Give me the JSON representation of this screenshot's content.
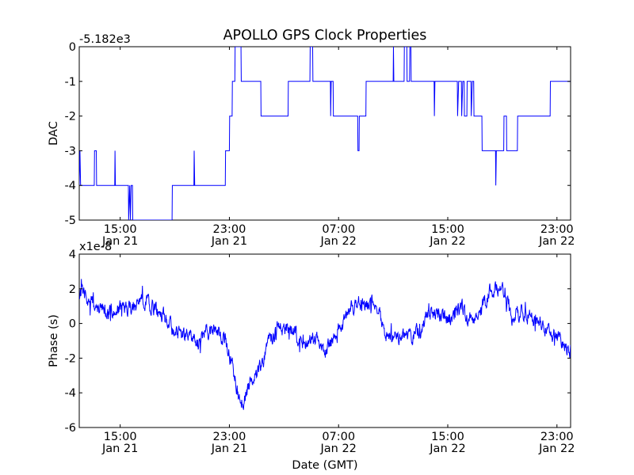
{
  "chart_data": [
    {
      "type": "line",
      "title": "APOLLO GPS Clock Properties",
      "offset_label": "-5.182e3",
      "ylabel": "DAC",
      "xlabel": "",
      "x_unit": "hours since Jan 21 12:00 GMT",
      "xlim": [
        0,
        36
      ],
      "ylim": [
        -5,
        0
      ],
      "yticks": [
        0,
        -1,
        -2,
        -3,
        -4,
        -5
      ],
      "ytick_labels": [
        "0",
        "-1",
        "-2",
        "-3",
        "-4",
        "-5"
      ],
      "xticks": [
        3,
        11,
        19,
        27,
        35
      ],
      "xtick_labels": [
        [
          "15:00",
          "Jan 21"
        ],
        [
          "23:00",
          "Jan 21"
        ],
        [
          "07:00",
          "Jan 22"
        ],
        [
          "15:00",
          "Jan 22"
        ],
        [
          "23:00",
          "Jan 22"
        ]
      ],
      "color": "#0000ff",
      "series": [
        {
          "name": "DAC",
          "kind": "step",
          "points": [
            [
              0.0,
              -4
            ],
            [
              0.05,
              -3
            ],
            [
              0.1,
              -4
            ],
            [
              1.1,
              -4
            ],
            [
              1.12,
              -3
            ],
            [
              1.25,
              -3
            ],
            [
              1.27,
              -4
            ],
            [
              2.6,
              -4
            ],
            [
              2.62,
              -3
            ],
            [
              2.65,
              -4
            ],
            [
              3.6,
              -4
            ],
            [
              3.62,
              -5
            ],
            [
              3.7,
              -4
            ],
            [
              3.75,
              -5
            ],
            [
              3.8,
              -4
            ],
            [
              3.9,
              -4
            ],
            [
              3.92,
              -5
            ],
            [
              6.8,
              -5
            ],
            [
              6.82,
              -4
            ],
            [
              8.4,
              -4
            ],
            [
              8.42,
              -3
            ],
            [
              8.46,
              -4
            ],
            [
              10.7,
              -4
            ],
            [
              10.72,
              -3
            ],
            [
              11.0,
              -3
            ],
            [
              11.02,
              -2
            ],
            [
              11.2,
              -2
            ],
            [
              11.22,
              -1
            ],
            [
              11.4,
              -1
            ],
            [
              11.42,
              0
            ],
            [
              11.85,
              0
            ],
            [
              11.87,
              -1
            ],
            [
              13.3,
              -1
            ],
            [
              13.32,
              -2
            ],
            [
              15.3,
              -2
            ],
            [
              15.32,
              -1
            ],
            [
              16.9,
              -1
            ],
            [
              16.92,
              0
            ],
            [
              17.1,
              0
            ],
            [
              17.12,
              -1
            ],
            [
              18.4,
              -1
            ],
            [
              18.42,
              -2
            ],
            [
              18.46,
              -1
            ],
            [
              18.6,
              -1
            ],
            [
              18.62,
              -2
            ],
            [
              20.4,
              -2
            ],
            [
              20.42,
              -3
            ],
            [
              20.5,
              -3
            ],
            [
              20.52,
              -2
            ],
            [
              21.0,
              -2
            ],
            [
              21.02,
              -1
            ],
            [
              23.0,
              -1
            ],
            [
              23.02,
              0
            ],
            [
              23.05,
              -1
            ],
            [
              23.8,
              -1
            ],
            [
              23.82,
              0
            ],
            [
              24.0,
              0
            ],
            [
              24.02,
              -1
            ],
            [
              24.2,
              -1
            ],
            [
              24.22,
              0
            ],
            [
              24.3,
              0
            ],
            [
              24.32,
              -1
            ],
            [
              26.0,
              -1
            ],
            [
              26.02,
              -2
            ],
            [
              26.06,
              -1
            ],
            [
              27.7,
              -1
            ],
            [
              27.72,
              -2
            ],
            [
              27.8,
              -1
            ],
            [
              28.0,
              -1
            ],
            [
              28.02,
              -2
            ],
            [
              28.1,
              -1
            ],
            [
              28.2,
              -1
            ],
            [
              28.22,
              -2
            ],
            [
              28.4,
              -2
            ],
            [
              28.42,
              -1
            ],
            [
              28.7,
              -1
            ],
            [
              28.72,
              -2
            ],
            [
              28.8,
              -1
            ],
            [
              28.9,
              -1
            ],
            [
              28.92,
              -2
            ],
            [
              29.5,
              -2
            ],
            [
              29.52,
              -3
            ],
            [
              30.5,
              -3
            ],
            [
              30.52,
              -4
            ],
            [
              30.56,
              -3
            ],
            [
              31.1,
              -3
            ],
            [
              31.12,
              -2
            ],
            [
              31.3,
              -2
            ],
            [
              31.32,
              -3
            ],
            [
              32.1,
              -3
            ],
            [
              32.12,
              -2
            ],
            [
              34.5,
              -2
            ],
            [
              34.52,
              -1
            ],
            [
              36.0,
              -1
            ]
          ]
        }
      ]
    },
    {
      "type": "line",
      "title": "",
      "offset_label": "x1e-8",
      "ylabel": "Phase (s)",
      "xlabel": "Date (GMT)",
      "x_unit": "hours since Jan 21 12:00 GMT",
      "xlim": [
        0,
        36
      ],
      "ylim": [
        -6,
        4
      ],
      "yticks": [
        4,
        2,
        0,
        -2,
        -4,
        -6
      ],
      "ytick_labels": [
        "4",
        "2",
        "0",
        "-2",
        "-4",
        "-6"
      ],
      "xticks": [
        3,
        11,
        19,
        27,
        35
      ],
      "xtick_labels": [
        [
          "15:00",
          "Jan 21"
        ],
        [
          "23:00",
          "Jan 21"
        ],
        [
          "07:00",
          "Jan 22"
        ],
        [
          "15:00",
          "Jan 22"
        ],
        [
          "23:00",
          "Jan 22"
        ]
      ],
      "color": "#0000ff",
      "noise_amplitude": 0.35,
      "series": [
        {
          "name": "Phase",
          "kind": "noisy",
          "points": [
            [
              0,
              1.8
            ],
            [
              1,
              1.2
            ],
            [
              2,
              0.6
            ],
            [
              3,
              0.9
            ],
            [
              4,
              1.0
            ],
            [
              4.7,
              1.3
            ],
            [
              5.5,
              0.8
            ],
            [
              6.3,
              0.4
            ],
            [
              7,
              -0.6
            ],
            [
              8,
              -0.7
            ],
            [
              8.6,
              -1.2
            ],
            [
              9.3,
              -0.5
            ],
            [
              10,
              -0.3
            ],
            [
              10.7,
              -1.0
            ],
            [
              11.2,
              -2.5
            ],
            [
              11.7,
              -4.3
            ],
            [
              12,
              -4.7
            ],
            [
              12.4,
              -3.6
            ],
            [
              12.8,
              -3.0
            ],
            [
              13.4,
              -2.4
            ],
            [
              13.8,
              -1.3
            ],
            [
              14.5,
              -0.4
            ],
            [
              15.3,
              -0.2
            ],
            [
              16.5,
              -1.1
            ],
            [
              17,
              -0.8
            ],
            [
              17.6,
              -0.9
            ],
            [
              18,
              -1.7
            ],
            [
              18.6,
              -0.8
            ],
            [
              19,
              -0.3
            ],
            [
              19.5,
              0.2
            ],
            [
              20,
              1.0
            ],
            [
              20.6,
              1.2
            ],
            [
              21.2,
              1.1
            ],
            [
              21.6,
              1.5
            ],
            [
              22,
              0.7
            ],
            [
              22.5,
              -0.8
            ],
            [
              23,
              -0.9
            ],
            [
              24,
              -0.8
            ],
            [
              25,
              -0.4
            ],
            [
              25.5,
              0.5
            ],
            [
              26,
              0.6
            ],
            [
              26.6,
              0.4
            ],
            [
              27,
              0.2
            ],
            [
              27.5,
              0.6
            ],
            [
              28,
              1.0
            ],
            [
              28.4,
              0.2
            ],
            [
              29,
              0.4
            ],
            [
              29.5,
              0.8
            ],
            [
              30,
              1.8
            ],
            [
              30.6,
              2.0
            ],
            [
              31.2,
              1.9
            ],
            [
              31.6,
              0.3
            ],
            [
              32.5,
              0.7
            ],
            [
              33.5,
              0.2
            ],
            [
              34,
              -0.2
            ],
            [
              35,
              -0.8
            ],
            [
              36,
              -1.5
            ]
          ]
        }
      ]
    }
  ]
}
